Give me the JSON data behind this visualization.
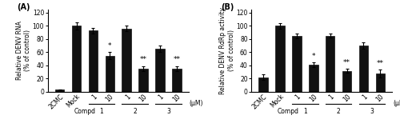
{
  "panel_A": {
    "label": "(A)",
    "ylabel": "Relative DENV RNA\n(% of control)",
    "bars": [
      3,
      100,
      93,
      55,
      96,
      35,
      65,
      35
    ],
    "errors": [
      1,
      5,
      4,
      5,
      4,
      4,
      5,
      4
    ],
    "bar_color": "#111111",
    "ylim": [
      0,
      125
    ],
    "yticks": [
      0,
      20,
      40,
      60,
      80,
      100,
      120
    ],
    "significance": [
      null,
      null,
      null,
      "*",
      null,
      "**",
      null,
      "**"
    ],
    "xtick_labels": [
      "2CMC",
      "Mock",
      "1",
      "10",
      "1",
      "10",
      "1",
      "10"
    ],
    "um_label": "(μM)",
    "underline_groups": [
      [
        2,
        3
      ],
      [
        4,
        5
      ],
      [
        6,
        7
      ]
    ],
    "compd_nums": [
      "1",
      "2",
      "3"
    ]
  },
  "panel_B": {
    "label": "(B)",
    "ylabel": "Relative DENV RdRp activity\n(% of control)",
    "bars": [
      22,
      100,
      85,
      41,
      85,
      32,
      70,
      28
    ],
    "errors": [
      4,
      4,
      4,
      4,
      3,
      3,
      5,
      6
    ],
    "bar_color": "#111111",
    "ylim": [
      0,
      125
    ],
    "yticks": [
      0,
      20,
      40,
      60,
      80,
      100,
      120
    ],
    "significance": [
      null,
      null,
      null,
      "*",
      null,
      "**",
      null,
      "**"
    ],
    "xtick_labels": [
      "2CMC",
      "Mock",
      "1",
      "10",
      "1",
      "10",
      "1",
      "10"
    ],
    "um_label": "(μM)",
    "underline_groups": [
      [
        2,
        3
      ],
      [
        4,
        5
      ],
      [
        6,
        7
      ]
    ],
    "compd_nums": [
      "1",
      "2",
      "3"
    ]
  },
  "bg_color": "#ffffff",
  "bar_width": 0.55,
  "fontsize": 5.5,
  "tick_fontsize": 5.5,
  "label_fontsize": 7.0,
  "sig_fontsize": 6.5
}
